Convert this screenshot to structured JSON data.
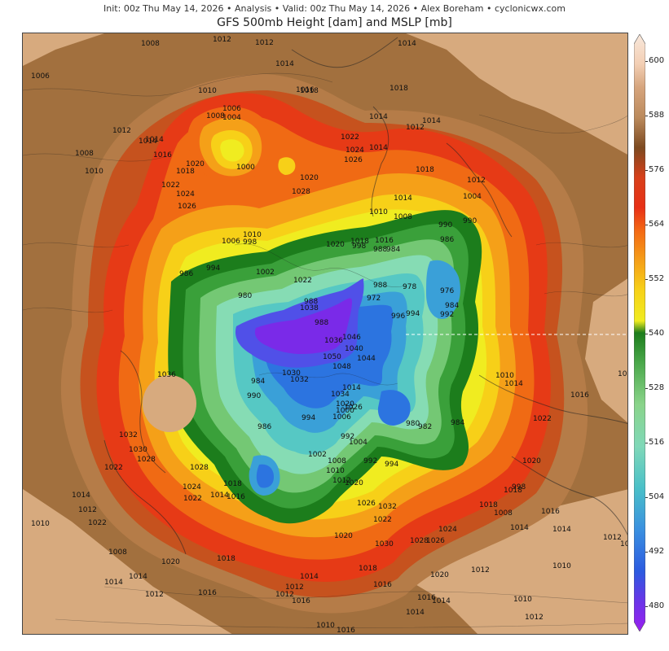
{
  "header": {
    "meta_line": "Init: 00z Thu May 14, 2026 • Analysis • Valid: 00z Thu May 14, 2026 • Alex Boreham • cyclonicwx.com",
    "title": "GFS 500mb Height [dam] and MSLP [mb]"
  },
  "colorbar": {
    "labels": [
      "600",
      "588",
      "576",
      "564",
      "552",
      "540",
      "528",
      "516",
      "504",
      "492",
      "480"
    ],
    "colors": [
      "#f6dcc8",
      "#d2a27a",
      "#8b5528",
      "#e82a14",
      "#f47a10",
      "#f7d218",
      "#1a7a1a",
      "#8ad48a",
      "#70d0c8",
      "#4aa0e0",
      "#7a2ae8"
    ]
  },
  "map": {
    "height_colors": {
      "h588": "#a2703e",
      "h582": "#b57c48",
      "h576": "#c6521e",
      "h570": "#e63a16",
      "h564": "#f06a14",
      "h558": "#f5a018",
      "h552": "#f7d018",
      "h546": "#f0ec20",
      "h540": "#1c7d1c",
      "h534": "#3aa03a",
      "h528": "#74c874",
      "h522": "#86dcb4",
      "h516": "#56c8c4",
      "h510": "#3aa0d8",
      "h504": "#2c74e0",
      "h498": "#5050e8",
      "h492": "#7a2ae8",
      "light": "#d7aa7e"
    },
    "pressure_labels": [
      "1006",
      "1008",
      "1012",
      "1012",
      "1014",
      "1016",
      "1018",
      "1014",
      "1014",
      "1014",
      "1010",
      "1006",
      "1004",
      "1008",
      "1014",
      "1018",
      "1022",
      "1026",
      "1024",
      "1012",
      "1014",
      "1016",
      "1008",
      "1010",
      "1000",
      "1018",
      "1020",
      "1022",
      "1024",
      "1026",
      "1028",
      "1020",
      "1010",
      "1012",
      "1018",
      "1012",
      "1004",
      "1014",
      "1008",
      "1016",
      "1018",
      "1020",
      "1022",
      "998",
      "994",
      "986",
      "1002",
      "1006",
      "1010",
      "1014",
      "998",
      "984",
      "990",
      "986",
      "990",
      "978",
      "976",
      "984",
      "992",
      "994",
      "988",
      "996",
      "988",
      "980",
      "988",
      "972",
      "988",
      "1036",
      "1040",
      "1044",
      "1048",
      "1050",
      "1046",
      "1038",
      "1034",
      "1032",
      "1030",
      "1014",
      "1026",
      "1020",
      "1006",
      "1000",
      "994",
      "992",
      "990",
      "984",
      "986",
      "982",
      "980",
      "984",
      "1010",
      "1014",
      "1016",
      "1014",
      "1022",
      "1020",
      "1018",
      "1016",
      "1014",
      "1012",
      "1036",
      "1028",
      "1032",
      "1030",
      "1022",
      "1028",
      "1024",
      "1022",
      "1018",
      "1016",
      "1014",
      "1012",
      "1010",
      "1008",
      "1014",
      "1020",
      "1026",
      "1032",
      "1030",
      "1028",
      "1026",
      "1024",
      "1022",
      "1020",
      "1018",
      "1016",
      "1014",
      "1012",
      "1008",
      "1014",
      "1012",
      "1010",
      "998",
      "994",
      "992",
      "1002",
      "1004",
      "1008",
      "1010",
      "1012",
      "1022",
      "1020",
      "1018",
      "1016",
      "1014",
      "1012",
      "1016",
      "1020",
      "1016",
      "1014",
      "1012",
      "1010",
      "1016",
      "1014",
      "1014",
      "1012",
      "1010",
      "1012",
      "1018"
    ]
  }
}
